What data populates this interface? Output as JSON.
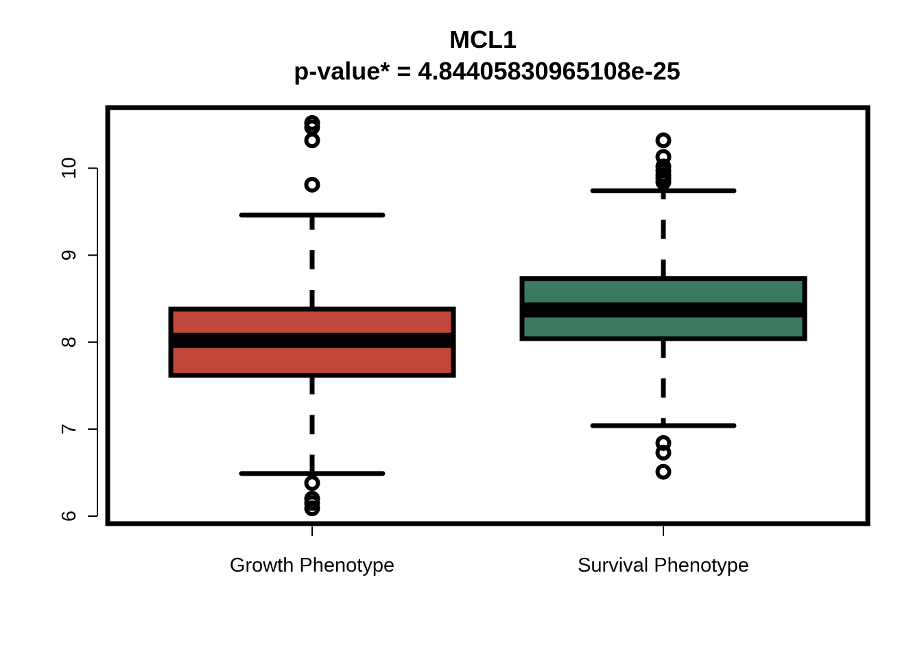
{
  "chart_data": {
    "type": "boxplot",
    "title": "MCL1",
    "subtitle": "p-value* = 4.84405830965108e-25",
    "xlabel": "",
    "ylabel": "",
    "ylim": [
      5.92,
      10.7
    ],
    "y_ticks": [
      "6",
      "7",
      "8",
      "9",
      "10"
    ],
    "grid": false,
    "legend": "none",
    "categories": [
      "Growth Phenotype",
      "Survival Phenotype"
    ],
    "series": [
      {
        "color": "#C0473A",
        "whisker_low": 6.49,
        "q1": 7.62,
        "median": 8.02,
        "q3": 8.38,
        "whisker_high": 9.46,
        "outliers": [
          10.52,
          10.47,
          10.32,
          9.81,
          6.38,
          6.2,
          6.15,
          6.09
        ]
      },
      {
        "color": "#3A7A60",
        "whisker_low": 7.04,
        "q1": 8.04,
        "median": 8.37,
        "q3": 8.73,
        "whisker_high": 9.74,
        "outliers": [
          10.32,
          10.13,
          10.02,
          9.97,
          9.92,
          9.88,
          9.84,
          6.84,
          6.73,
          6.51
        ]
      }
    ]
  }
}
